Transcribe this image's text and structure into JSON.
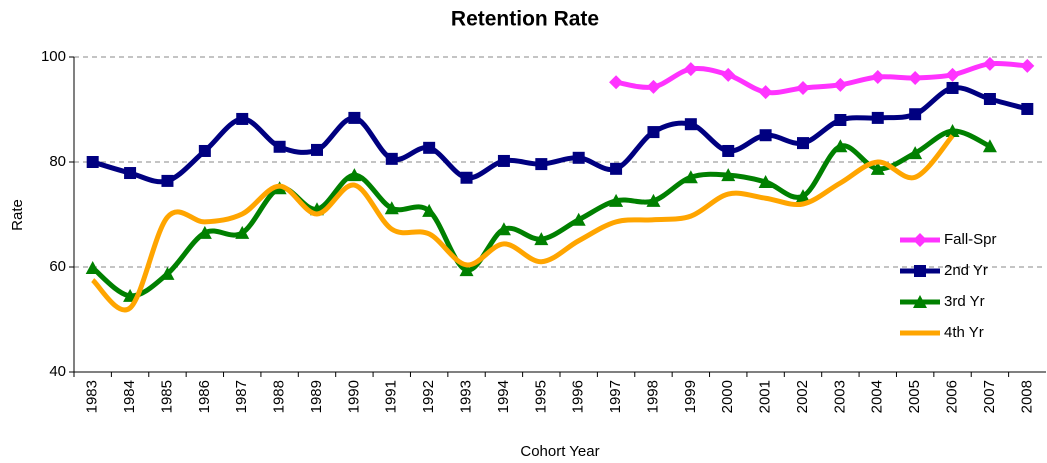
{
  "chart_data": {
    "type": "line",
    "title": "Retention Rate",
    "x_label": "Cohort Year",
    "y_label": "Rate",
    "categories": [
      "1983",
      "1984",
      "1985",
      "1986",
      "1987",
      "1988",
      "1989",
      "1990",
      "1991",
      "1992",
      "1993",
      "1994",
      "1995",
      "1996",
      "1997",
      "1998",
      "1999",
      "2000",
      "2001",
      "2002",
      "2003",
      "2004",
      "2005",
      "2006",
      "2007",
      "2008"
    ],
    "series": [
      {
        "name": "Fall-Spr",
        "color": "#ff33ff",
        "marker": "diamond",
        "values": [
          null,
          null,
          null,
          null,
          null,
          null,
          null,
          null,
          null,
          null,
          null,
          null,
          null,
          null,
          95.2,
          94.3,
          97.7,
          96.6,
          93.3,
          94.1,
          94.7,
          96.2,
          96.0,
          96.6,
          98.7,
          98.3
        ]
      },
      {
        "name": "2nd Yr",
        "color": "#000080",
        "marker": "square",
        "values": [
          80,
          77.9,
          76.4,
          82.1,
          88.2,
          82.9,
          82.3,
          88.4,
          80.6,
          82.7,
          77,
          80.2,
          79.6,
          80.8,
          78.7,
          85.7,
          87.2,
          82.1,
          85.1,
          83.6,
          88,
          88.4,
          89.1,
          94.1,
          92,
          90.1
        ]
      },
      {
        "name": "3rd Yr",
        "color": "#008000",
        "marker": "triangle",
        "values": [
          59.8,
          54.5,
          58.7,
          66.5,
          66.5,
          75,
          71,
          77.5,
          71.2,
          70.7,
          59.4,
          67.2,
          65.3,
          69,
          72.6,
          72.6,
          77.1,
          77.5,
          76.2,
          73.5,
          83,
          78.7,
          81.7,
          85.9,
          83,
          null
        ]
      },
      {
        "name": "4th Yr",
        "color": "#ffa500",
        "marker": "none",
        "values": [
          57.5,
          52.2,
          69.5,
          68.6,
          70.1,
          75.4,
          70.1,
          75.6,
          67.2,
          66.3,
          60.4,
          64.4,
          61,
          65,
          68.6,
          69,
          69.7,
          73.9,
          73.1,
          72,
          76,
          80,
          77.1,
          85,
          null,
          null
        ]
      }
    ],
    "ylim": [
      40,
      100
    ],
    "yticks": [
      40,
      60,
      80,
      100
    ],
    "grid": true,
    "smooth": true,
    "legend": "right"
  }
}
